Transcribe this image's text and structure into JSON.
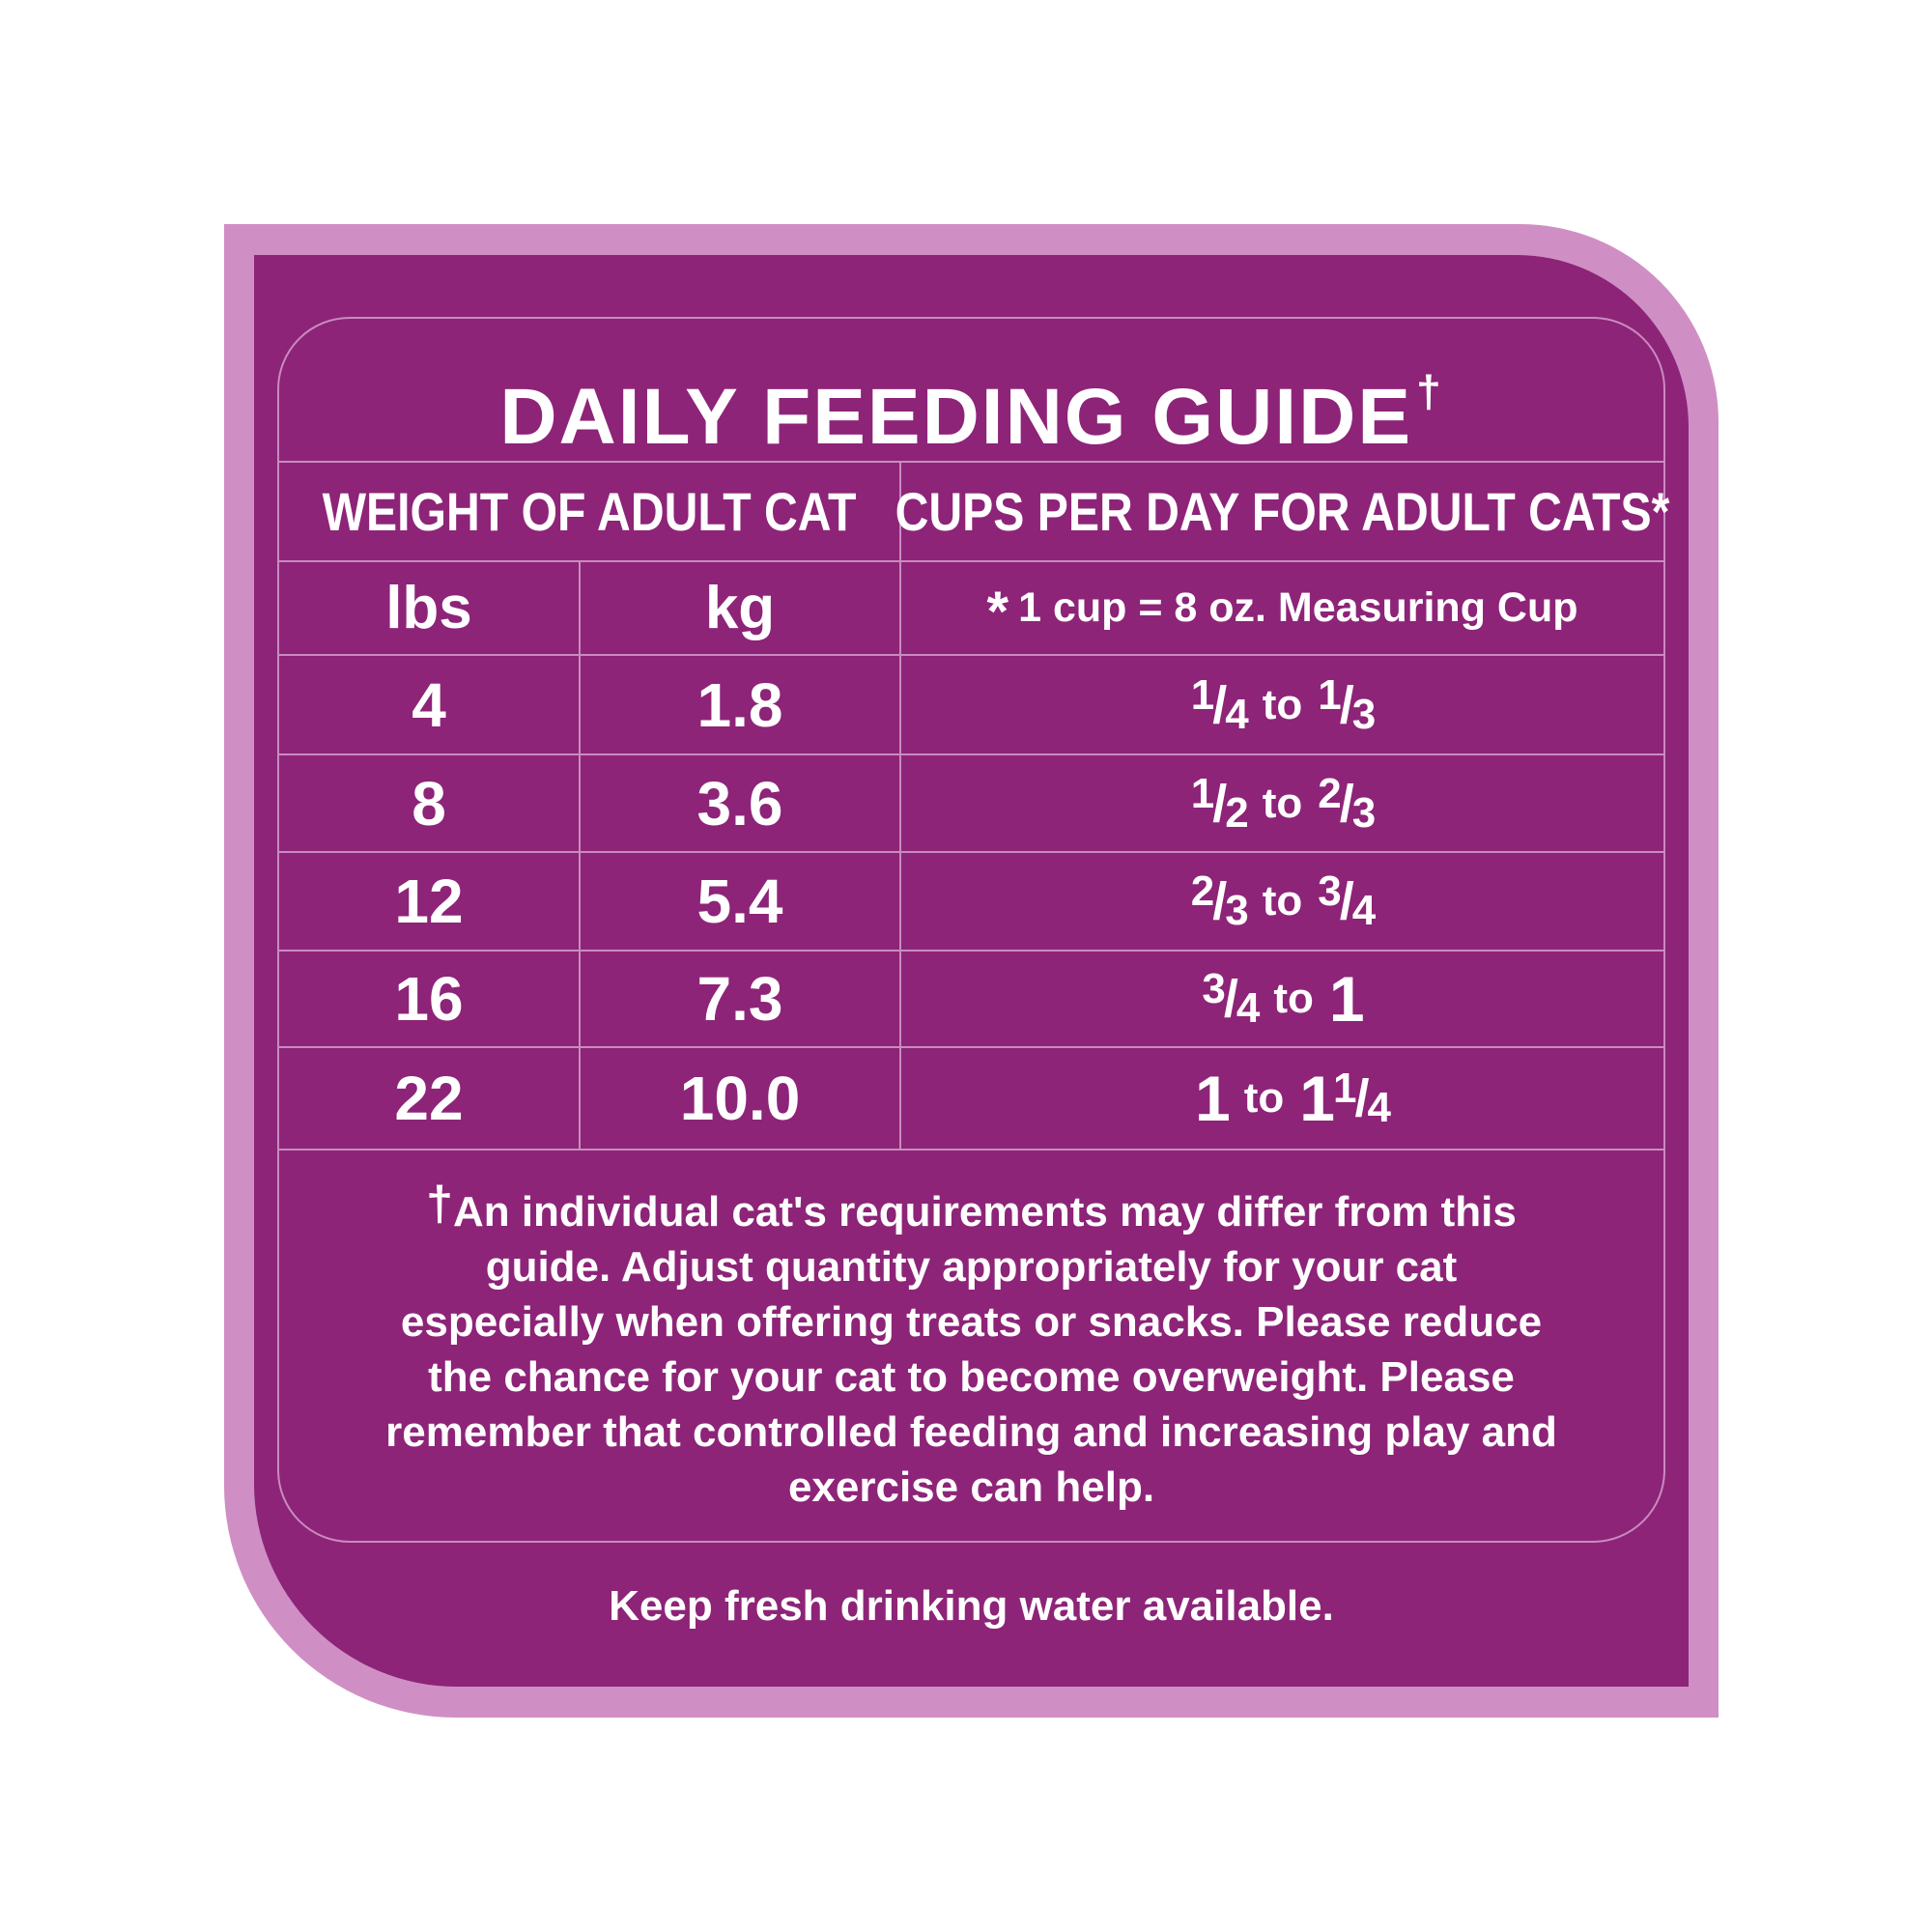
{
  "title": "DAILY FEEDING GUIDE",
  "title_mark": "†",
  "columns": {
    "weight_header": "WEIGHT OF ADULT CAT",
    "cups_header": "CUPS PER DAY FOR ADULT CATS*",
    "lbs_label": "lbs",
    "kg_label": "kg",
    "cup_note_mark": "*",
    "cup_note": "1 cup = 8 oz. Measuring Cup"
  },
  "rows": [
    {
      "lbs": "4",
      "kg": "1.8",
      "cups": {
        "a_num": "1",
        "a_den": "4",
        "to": "to",
        "b_num": "1",
        "b_den": "3"
      }
    },
    {
      "lbs": "8",
      "kg": "3.6",
      "cups": {
        "a_num": "1",
        "a_den": "2",
        "to": "to",
        "b_num": "2",
        "b_den": "3"
      }
    },
    {
      "lbs": "12",
      "kg": "5.4",
      "cups": {
        "a_num": "2",
        "a_den": "3",
        "to": "to",
        "b_num": "3",
        "b_den": "4"
      }
    },
    {
      "lbs": "16",
      "kg": "7.3",
      "cups": {
        "a_num": "3",
        "a_den": "4",
        "to": "to",
        "b_whole": "1"
      }
    },
    {
      "lbs": "22",
      "kg": "10.0",
      "cups": {
        "a_whole": "1",
        "to": "to",
        "b_whole": "1",
        "b_num": "1",
        "b_den": "4"
      }
    }
  ],
  "footnote": {
    "mark": "†",
    "lines": [
      "An individual cat's requirements may differ from this",
      "guide. Adjust quantity appropriately for your cat",
      "especially when offering treats or snacks. Please reduce",
      "the chance for your cat to become overweight. Please",
      "remember that controlled feeding and increasing play and",
      "exercise can help."
    ]
  },
  "water_note": "Keep fresh drinking water available.",
  "colors": {
    "panel": "#8d2478",
    "border": "#cf8fc4",
    "rule": "#c98bc0",
    "text": "#ffffff"
  }
}
